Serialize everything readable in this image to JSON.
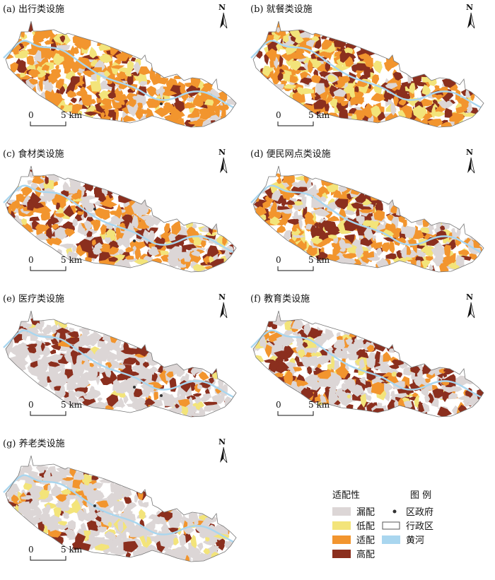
{
  "panels": [
    {
      "title": "(a) 出行类设施",
      "mix": [
        0.1,
        0.12,
        0.58,
        0.2
      ]
    },
    {
      "title": "(b) 就餐类设施",
      "mix": [
        0.12,
        0.22,
        0.36,
        0.3
      ]
    },
    {
      "title": "(c) 食材类设施",
      "mix": [
        0.4,
        0.08,
        0.32,
        0.2
      ]
    },
    {
      "title": "(d) 便民网点类设施",
      "mix": [
        0.34,
        0.12,
        0.36,
        0.18
      ]
    },
    {
      "title": "(e) 医疗类设施",
      "mix": [
        0.72,
        0.02,
        0.06,
        0.2
      ]
    },
    {
      "title": "(f) 教育类设施",
      "mix": [
        0.48,
        0.1,
        0.14,
        0.28
      ]
    },
    {
      "title": "(g) 养老类设施",
      "mix": [
        0.76,
        0.1,
        0.06,
        0.08
      ]
    }
  ],
  "scale": {
    "start": "0",
    "end": "5 km"
  },
  "north_label": "N",
  "legend": {
    "suitability_title": "适配性",
    "classes": [
      {
        "label": "漏配",
        "color": "#dcd6d6"
      },
      {
        "label": "低配",
        "color": "#f3e47a"
      },
      {
        "label": "适配",
        "color": "#f2952e"
      },
      {
        "label": "高配",
        "color": "#8b2f1e"
      }
    ],
    "symbols_title": "图 例",
    "symbols": [
      {
        "label": "区政府",
        "kind": "dot"
      },
      {
        "label": "行政区",
        "kind": "outline"
      },
      {
        "label": "黄河",
        "kind": "river"
      }
    ],
    "river_color": "#a9d6ef"
  }
}
